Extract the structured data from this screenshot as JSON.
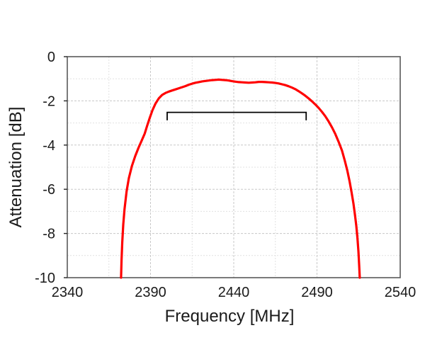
{
  "chart_data": {
    "type": "line",
    "title": "",
    "xlabel": "Frequency [MHz]",
    "ylabel": "Attenuation [dB]",
    "xlim": [
      2340,
      2540
    ],
    "ylim": [
      -10,
      0
    ],
    "x_major_ticks": [
      2340,
      2390,
      2440,
      2490,
      2540
    ],
    "x_minor_step": 25,
    "y_major_ticks": [
      0,
      -2,
      -4,
      -6,
      -8,
      -10
    ],
    "y_minor_step": 1,
    "grid": "on",
    "legend": "none",
    "series": [
      {
        "name": "filter-attenuation-response",
        "color": "#ff0000",
        "points": [
          [
            2372.3,
            -10.0
          ],
          [
            2372.6,
            -9.2
          ],
          [
            2373.0,
            -8.4
          ],
          [
            2373.6,
            -7.6
          ],
          [
            2374.4,
            -6.9
          ],
          [
            2375.6,
            -6.1
          ],
          [
            2377.0,
            -5.5
          ],
          [
            2378.8,
            -4.95
          ],
          [
            2380.8,
            -4.5
          ],
          [
            2382.8,
            -4.12
          ],
          [
            2384.8,
            -3.78
          ],
          [
            2386.5,
            -3.48
          ],
          [
            2388.0,
            -3.12
          ],
          [
            2389.5,
            -2.78
          ],
          [
            2391.2,
            -2.42
          ],
          [
            2393.0,
            -2.12
          ],
          [
            2395.0,
            -1.88
          ],
          [
            2397.0,
            -1.73
          ],
          [
            2399.0,
            -1.64
          ],
          [
            2401.0,
            -1.58
          ],
          [
            2403.0,
            -1.53
          ],
          [
            2405.0,
            -1.48
          ],
          [
            2407.0,
            -1.43
          ],
          [
            2409.0,
            -1.38
          ],
          [
            2411.0,
            -1.33
          ],
          [
            2413.0,
            -1.27
          ],
          [
            2415.0,
            -1.22
          ],
          [
            2417.0,
            -1.18
          ],
          [
            2419.0,
            -1.15
          ],
          [
            2421.0,
            -1.12
          ],
          [
            2423.0,
            -1.1
          ],
          [
            2425.0,
            -1.08
          ],
          [
            2427.0,
            -1.06
          ],
          [
            2429.0,
            -1.05
          ],
          [
            2431.0,
            -1.04
          ],
          [
            2433.0,
            -1.05
          ],
          [
            2435.0,
            -1.06
          ],
          [
            2437.0,
            -1.08
          ],
          [
            2439.0,
            -1.11
          ],
          [
            2441.0,
            -1.13
          ],
          [
            2443.0,
            -1.15
          ],
          [
            2445.0,
            -1.16
          ],
          [
            2447.0,
            -1.17
          ],
          [
            2449.0,
            -1.18
          ],
          [
            2451.0,
            -1.17
          ],
          [
            2453.0,
            -1.16
          ],
          [
            2455.0,
            -1.14
          ],
          [
            2457.0,
            -1.14
          ],
          [
            2459.0,
            -1.15
          ],
          [
            2461.0,
            -1.16
          ],
          [
            2463.0,
            -1.17
          ],
          [
            2465.0,
            -1.19
          ],
          [
            2467.0,
            -1.21
          ],
          [
            2469.0,
            -1.25
          ],
          [
            2471.0,
            -1.29
          ],
          [
            2473.0,
            -1.34
          ],
          [
            2475.0,
            -1.4
          ],
          [
            2477.0,
            -1.47
          ],
          [
            2479.0,
            -1.56
          ],
          [
            2481.0,
            -1.66
          ],
          [
            2483.0,
            -1.77
          ],
          [
            2485.0,
            -1.89
          ],
          [
            2487.0,
            -2.02
          ],
          [
            2489.0,
            -2.16
          ],
          [
            2491.0,
            -2.32
          ],
          [
            2493.0,
            -2.5
          ],
          [
            2495.0,
            -2.7
          ],
          [
            2497.0,
            -2.93
          ],
          [
            2499.0,
            -3.2
          ],
          [
            2501.0,
            -3.5
          ],
          [
            2503.0,
            -3.85
          ],
          [
            2505.0,
            -4.25
          ],
          [
            2506.7,
            -4.7
          ],
          [
            2508.2,
            -5.15
          ],
          [
            2509.6,
            -5.65
          ],
          [
            2510.8,
            -6.15
          ],
          [
            2511.9,
            -6.65
          ],
          [
            2512.8,
            -7.15
          ],
          [
            2513.6,
            -7.65
          ],
          [
            2514.3,
            -8.2
          ],
          [
            2514.9,
            -8.8
          ],
          [
            2515.3,
            -9.4
          ],
          [
            2515.7,
            -10.0
          ]
        ]
      }
    ],
    "annotations": [
      {
        "name": "ism-band-bracket",
        "shape": "down-bracket",
        "x_start": 2400,
        "x_end": 2483.5,
        "y_db": -2.52,
        "leg_db": 0.36,
        "color": "#000000"
      }
    ],
    "colors": {
      "curve": "#ff0000",
      "grid_major": "#c8c8c8",
      "grid_minor": "#e1e1e1",
      "axis_border": "#595959",
      "tick": "#262626",
      "text": "#1a1a1a",
      "background": "#ffffff"
    }
  }
}
